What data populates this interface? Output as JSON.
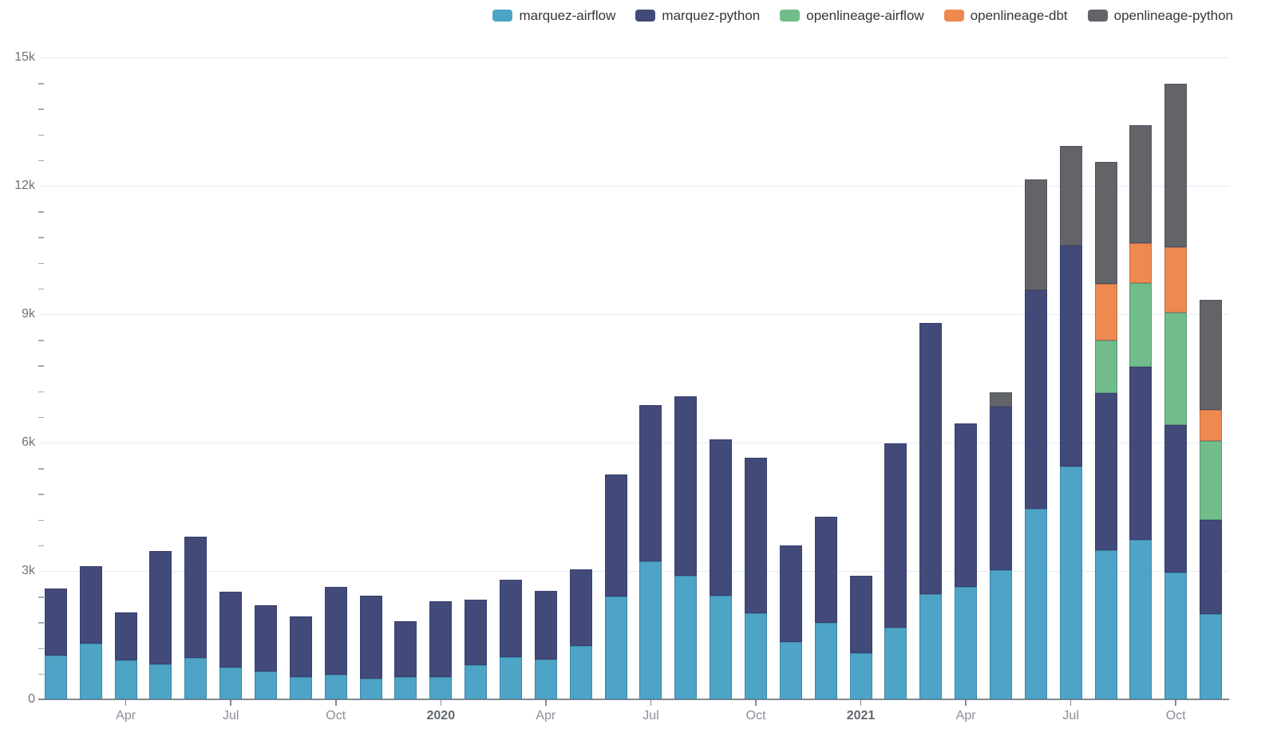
{
  "legend": {
    "items": [
      {
        "label": "marquez-airflow",
        "color": "#4DA4C6"
      },
      {
        "label": "marquez-python",
        "color": "#424A7A"
      },
      {
        "label": "openlineage-airflow",
        "color": "#70BD8B"
      },
      {
        "label": "openlineage-dbt",
        "color": "#EE8A4F"
      },
      {
        "label": "openlineage-python",
        "color": "#626468"
      }
    ]
  },
  "chart_data": {
    "type": "bar",
    "stacked": true,
    "title": "",
    "xlabel": "",
    "ylabel": "",
    "grid": true,
    "legend_position": "top-right",
    "ylim": [
      0,
      15000
    ],
    "ytick_interval": 3000,
    "yminor_interval": 600,
    "ytick_labels": [
      "0",
      "3k",
      "6k",
      "9k",
      "12k",
      "15k"
    ],
    "categories": [
      "2019-02",
      "2019-03",
      "2019-04",
      "2019-05",
      "2019-06",
      "2019-07",
      "2019-08",
      "2019-09",
      "2019-10",
      "2019-11",
      "2019-12",
      "2020-01",
      "2020-02",
      "2020-03",
      "2020-04",
      "2020-05",
      "2020-06",
      "2020-07",
      "2020-08",
      "2020-09",
      "2020-10",
      "2020-11",
      "2020-12",
      "2021-01",
      "2021-02",
      "2021-03",
      "2021-04",
      "2021-05",
      "2021-06",
      "2021-07",
      "2021-08",
      "2021-09",
      "2021-10",
      "2021-11"
    ],
    "x_tick_labels": [
      {
        "index": 2,
        "label": "Apr",
        "bold": false
      },
      {
        "index": 5,
        "label": "Jul",
        "bold": false
      },
      {
        "index": 8,
        "label": "Oct",
        "bold": false
      },
      {
        "index": 11,
        "label": "2020",
        "bold": true
      },
      {
        "index": 14,
        "label": "Apr",
        "bold": false
      },
      {
        "index": 17,
        "label": "Jul",
        "bold": false
      },
      {
        "index": 20,
        "label": "Oct",
        "bold": false
      },
      {
        "index": 23,
        "label": "2021",
        "bold": true
      },
      {
        "index": 26,
        "label": "Apr",
        "bold": false
      },
      {
        "index": 29,
        "label": "Jul",
        "bold": false
      },
      {
        "index": 32,
        "label": "Oct",
        "bold": false
      }
    ],
    "series": [
      {
        "name": "marquez-airflow",
        "color": "#4DA4C6",
        "values": [
          1020,
          1300,
          910,
          820,
          970,
          750,
          650,
          520,
          580,
          490,
          530,
          530,
          800,
          990,
          930,
          1240,
          2400,
          3220,
          2890,
          2420,
          2010,
          1340,
          1790,
          1090,
          1670,
          2460,
          2630,
          3020,
          4450,
          5440,
          3480,
          3730,
          2960,
          2000
        ]
      },
      {
        "name": "marquez-python",
        "color": "#424A7A",
        "values": [
          1570,
          1810,
          1130,
          2650,
          2830,
          1760,
          1540,
          1420,
          2050,
          1940,
          1300,
          1760,
          1520,
          1810,
          1610,
          1790,
          2860,
          3660,
          4190,
          3660,
          3630,
          2250,
          2480,
          1790,
          4310,
          6340,
          3820,
          3810,
          5110,
          5160,
          3680,
          4040,
          3450,
          2200
        ]
      },
      {
        "name": "openlineage-airflow",
        "color": "#70BD8B",
        "values": [
          0,
          0,
          0,
          0,
          0,
          0,
          0,
          0,
          0,
          0,
          0,
          0,
          0,
          0,
          0,
          0,
          0,
          0,
          0,
          0,
          0,
          0,
          0,
          0,
          0,
          0,
          0,
          0,
          0,
          0,
          1230,
          1960,
          2620,
          1830
        ]
      },
      {
        "name": "openlineage-dbt",
        "color": "#EE8A4F",
        "values": [
          0,
          0,
          0,
          0,
          0,
          0,
          0,
          0,
          0,
          0,
          0,
          0,
          0,
          0,
          0,
          0,
          0,
          0,
          0,
          0,
          0,
          0,
          0,
          0,
          0,
          0,
          0,
          0,
          0,
          0,
          1320,
          930,
          1530,
          740
        ]
      },
      {
        "name": "openlineage-python",
        "color": "#626468",
        "values": [
          0,
          0,
          0,
          0,
          0,
          0,
          0,
          0,
          0,
          0,
          0,
          0,
          0,
          0,
          0,
          0,
          0,
          0,
          0,
          0,
          0,
          0,
          0,
          0,
          0,
          0,
          0,
          340,
          2590,
          2340,
          2840,
          2760,
          3830,
          2570
        ]
      }
    ]
  }
}
